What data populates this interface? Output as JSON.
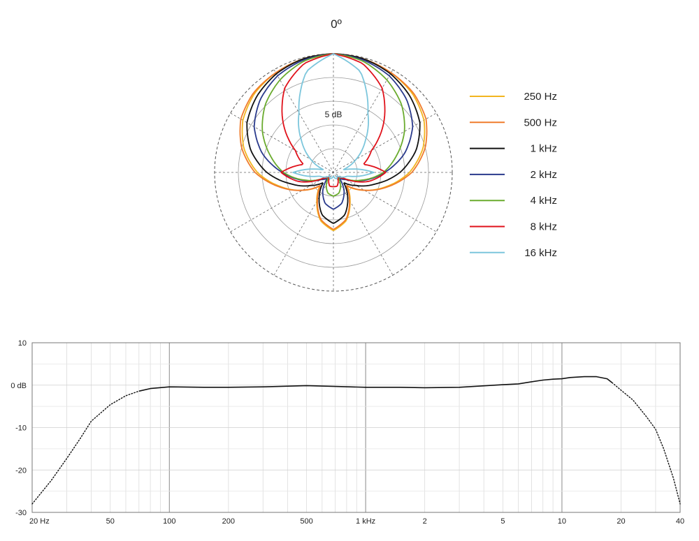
{
  "chart_data": [
    {
      "type": "polar",
      "angle_label": "0º",
      "ring_label": "5 dB",
      "grid": true,
      "legend_position": "right",
      "angles_deg": [
        0,
        15,
        30,
        45,
        60,
        75,
        90,
        105,
        120,
        135,
        150,
        165,
        180
      ],
      "series": [
        {
          "name": "250 Hz",
          "color": "#f2b51f",
          "values": [
            1.0,
            0.99,
            0.97,
            0.94,
            0.88,
            0.78,
            0.64,
            0.46,
            0.3,
            0.16,
            0.28,
            0.42,
            0.49
          ]
        },
        {
          "name": "500 Hz",
          "color": "#f07b2c",
          "values": [
            1.0,
            0.99,
            0.97,
            0.95,
            0.9,
            0.8,
            0.66,
            0.47,
            0.3,
            0.15,
            0.27,
            0.41,
            0.48
          ]
        },
        {
          "name": "1 kHz",
          "color": "#111111",
          "values": [
            1.0,
            0.99,
            0.96,
            0.91,
            0.84,
            0.72,
            0.56,
            0.37,
            0.22,
            0.12,
            0.24,
            0.37,
            0.43
          ]
        },
        {
          "name": "2 kHz",
          "color": "#2a3a8c",
          "values": [
            1.0,
            0.98,
            0.94,
            0.87,
            0.77,
            0.62,
            0.43,
            0.26,
            0.12,
            0.07,
            0.18,
            0.27,
            0.31
          ]
        },
        {
          "name": "4 kHz",
          "color": "#6aab2e",
          "values": [
            1.0,
            0.97,
            0.9,
            0.81,
            0.69,
            0.55,
            0.42,
            0.25,
            0.1,
            0.05,
            0.12,
            0.18,
            0.2
          ]
        },
        {
          "name": "8 kHz",
          "color": "#e0121b",
          "values": [
            1.0,
            0.95,
            0.82,
            0.6,
            0.37,
            0.26,
            0.44,
            0.3,
            0.1,
            0.04,
            0.08,
            0.12,
            0.12
          ]
        },
        {
          "name": "16 kHz",
          "color": "#7cc6dc",
          "values": [
            1.0,
            0.88,
            0.58,
            0.38,
            0.22,
            0.08,
            0.34,
            0.12,
            0.08,
            0.04,
            0.06,
            0.05,
            0.03
          ]
        }
      ]
    },
    {
      "type": "line",
      "x_scale": "log",
      "xlim": [
        20,
        40000
      ],
      "ylim": [
        -30,
        10
      ],
      "y_ticks": [
        10,
        0,
        -10,
        -20,
        -30
      ],
      "y_tick_labels": [
        "10",
        "0 dB",
        "-10",
        "-20",
        "-30"
      ],
      "x_ticks": [
        20,
        50,
        100,
        200,
        500,
        1000,
        2000,
        5000,
        10000,
        20000,
        40000
      ],
      "x_tick_labels": [
        "20 Hz",
        "50",
        "100",
        "200",
        "500",
        "1 kHz",
        "2",
        "5",
        "10",
        "20",
        "40"
      ],
      "grid": true,
      "series": [
        {
          "color": "#111111",
          "x": [
            70,
            80,
            100,
            150,
            200,
            300,
            500,
            700,
            1000,
            1500,
            2000,
            3000,
            5000,
            6000,
            7000,
            8000,
            9000,
            10000,
            11000,
            13000,
            15000,
            17000,
            18000
          ],
          "y": [
            -1.4,
            -0.8,
            -0.4,
            -0.5,
            -0.5,
            -0.4,
            -0.1,
            -0.3,
            -0.5,
            -0.5,
            -0.6,
            -0.5,
            0.1,
            0.3,
            0.8,
            1.2,
            1.4,
            1.5,
            1.8,
            2.0,
            2.0,
            1.5,
            0.6
          ]
        },
        {
          "color": "#111111",
          "dotted": true,
          "x": [
            20,
            25,
            30,
            35,
            40,
            50,
            60,
            70
          ],
          "y": [
            -28,
            -22.5,
            -17.3,
            -12.7,
            -8.5,
            -4.6,
            -2.5,
            -1.4
          ]
        },
        {
          "color": "#111111",
          "dotted": true,
          "x": [
            18000,
            20000,
            23000,
            27000,
            30000,
            33000,
            37000,
            40000
          ],
          "y": [
            0.6,
            -1.2,
            -3.5,
            -7.5,
            -10.4,
            -15,
            -22,
            -28
          ]
        }
      ]
    }
  ]
}
